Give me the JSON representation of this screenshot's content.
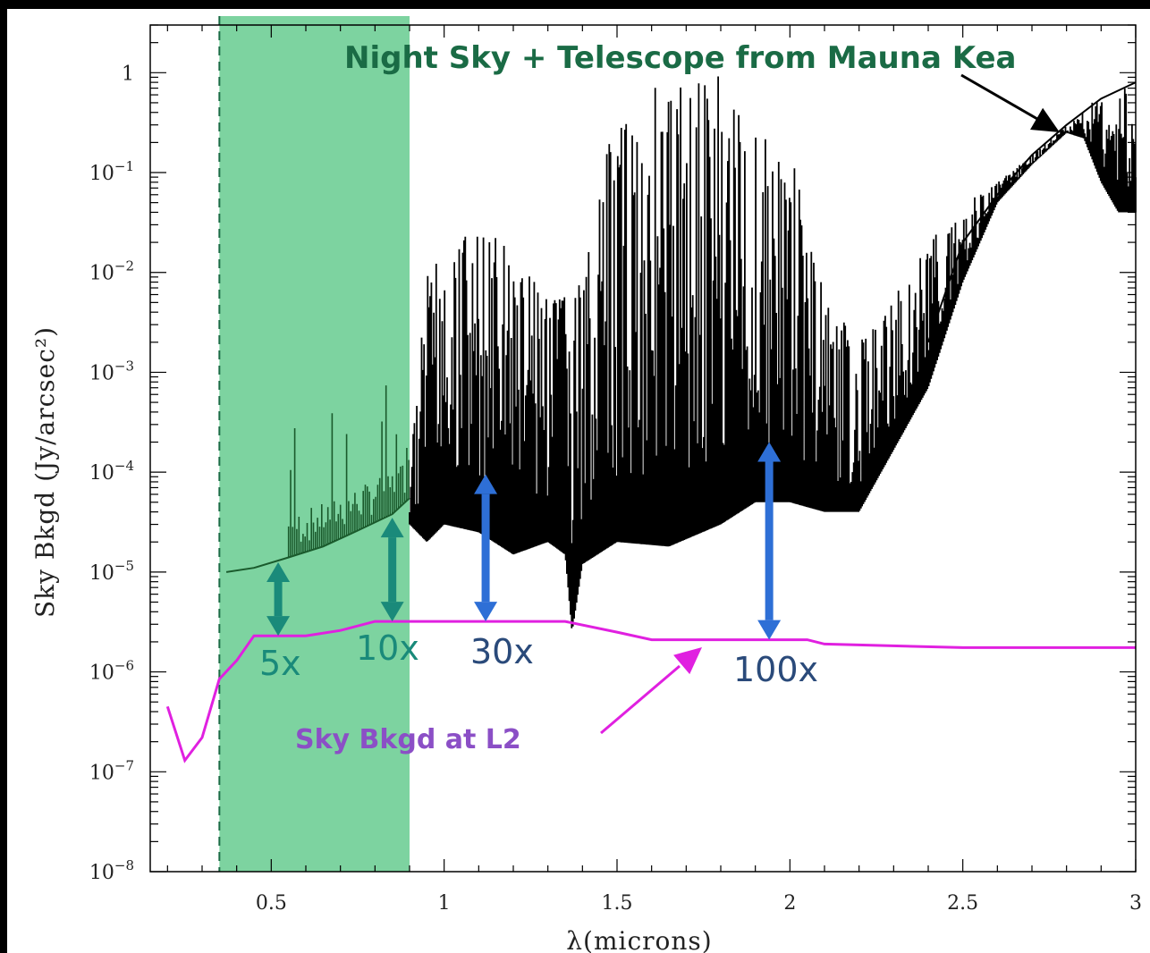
{
  "chart_data": {
    "type": "line",
    "title": "",
    "xlabel": "λ(microns)",
    "ylabel": "Sky Bkgd (Jy/arcsec²)",
    "xlim": [
      0.15,
      3.0
    ],
    "ylim": [
      1e-08,
      3
    ],
    "yscale": "log",
    "grid": false,
    "x_ticks": [
      {
        "value": 0.5,
        "label": "0.5"
      },
      {
        "value": 1.0,
        "label": "1"
      },
      {
        "value": 1.5,
        "label": "1.5"
      },
      {
        "value": 2.0,
        "label": "2"
      },
      {
        "value": 2.5,
        "label": "2.5"
      },
      {
        "value": 3.0,
        "label": "3"
      }
    ],
    "y_ticks": [
      {
        "value": 1,
        "base": "1",
        "exp": ""
      },
      {
        "value": 0.1,
        "base": "10",
        "exp": "−1"
      },
      {
        "value": 0.01,
        "base": "10",
        "exp": "−2"
      },
      {
        "value": 0.001,
        "base": "10",
        "exp": "−3"
      },
      {
        "value": 0.0001,
        "base": "10",
        "exp": "−4"
      },
      {
        "value": 1e-05,
        "base": "10",
        "exp": "−5"
      },
      {
        "value": 1e-06,
        "base": "10",
        "exp": "−6"
      },
      {
        "value": 1e-07,
        "base": "10",
        "exp": "−7"
      },
      {
        "value": 1e-08,
        "base": "10",
        "exp": "−8"
      }
    ],
    "highlight_band": {
      "x_start": 0.35,
      "x_end": 0.9,
      "color": "#7dd3a0"
    },
    "dashed_line_x": 0.35,
    "series": [
      {
        "name": "Night Sky + Telescope from Mauna Kea",
        "color": "#000000",
        "continuum": [
          [
            0.37,
            1e-05
          ],
          [
            0.45,
            1.1e-05
          ],
          [
            0.55,
            1.4e-05
          ],
          [
            0.65,
            1.8e-05
          ],
          [
            0.75,
            2.6e-05
          ],
          [
            0.85,
            3.8e-05
          ],
          [
            0.9,
            5.5e-05
          ],
          [
            1.0,
            7e-05
          ],
          [
            1.35,
            7e-05
          ],
          [
            1.6,
            5e-05
          ],
          [
            1.9,
            6e-05
          ],
          [
            2.05,
            7e-05
          ],
          [
            2.1,
            4.5e-05
          ],
          [
            2.2,
            4e-05
          ],
          [
            2.3,
            0.00015
          ],
          [
            2.4,
            0.002
          ],
          [
            2.5,
            0.02
          ],
          [
            2.6,
            0.06
          ],
          [
            2.7,
            0.15
          ],
          [
            2.8,
            0.3
          ],
          [
            2.9,
            0.55
          ],
          [
            3.0,
            0.8
          ]
        ],
        "band_top": [
          [
            0.9,
            0.00012
          ],
          [
            0.95,
            0.01
          ],
          [
            1.05,
            0.03
          ],
          [
            1.15,
            0.03
          ],
          [
            1.3,
            0.01
          ],
          [
            1.4,
            0.01
          ],
          [
            1.5,
            0.5
          ],
          [
            1.6,
            1
          ],
          [
            1.7,
            1
          ],
          [
            1.8,
            1
          ],
          [
            1.9,
            0.3
          ],
          [
            2.0,
            0.2
          ],
          [
            2.1,
            0.006
          ],
          [
            2.2,
            0.002
          ],
          [
            2.3,
            0.006
          ],
          [
            2.4,
            0.02
          ],
          [
            2.5,
            0.05
          ],
          [
            2.6,
            0.08
          ],
          [
            2.7,
            0.15
          ],
          [
            2.8,
            0.3
          ],
          [
            2.9,
            0.6
          ],
          [
            3.0,
            0.8
          ]
        ],
        "band_bottom": [
          [
            0.9,
            3e-05
          ],
          [
            0.95,
            2e-05
          ],
          [
            1.0,
            3e-05
          ],
          [
            1.1,
            2.5e-05
          ],
          [
            1.2,
            1.5e-05
          ],
          [
            1.3,
            2e-05
          ],
          [
            1.35,
            1.5e-05
          ],
          [
            1.37,
            2.5e-06
          ],
          [
            1.4,
            1.2e-05
          ],
          [
            1.5,
            2e-05
          ],
          [
            1.65,
            1.8e-05
          ],
          [
            1.8,
            3e-05
          ],
          [
            1.9,
            5e-05
          ],
          [
            2.0,
            5e-05
          ],
          [
            2.1,
            4e-05
          ],
          [
            2.2,
            4e-05
          ],
          [
            2.4,
            0.0007
          ],
          [
            2.5,
            0.008
          ],
          [
            2.6,
            0.05
          ],
          [
            2.7,
            0.12
          ],
          [
            2.8,
            0.25
          ],
          [
            2.85,
            0.22
          ],
          [
            2.9,
            0.08
          ],
          [
            2.95,
            0.04
          ],
          [
            3.0,
            0.04
          ]
        ]
      },
      {
        "name": "Sky Bkgd at L2",
        "color": "#e020e0",
        "points": [
          [
            0.2,
            4.5e-07
          ],
          [
            0.25,
            1.3e-07
          ],
          [
            0.3,
            2.2e-07
          ],
          [
            0.35,
            8.5e-07
          ],
          [
            0.4,
            1.3e-06
          ],
          [
            0.45,
            2.3e-06
          ],
          [
            0.6,
            2.3e-06
          ],
          [
            0.7,
            2.6e-06
          ],
          [
            0.8,
            3.2e-06
          ],
          [
            1.0,
            3.2e-06
          ],
          [
            1.35,
            3.2e-06
          ],
          [
            1.5,
            2.5e-06
          ],
          [
            1.6,
            2.1e-06
          ],
          [
            2.05,
            2.1e-06
          ],
          [
            2.1,
            1.9e-06
          ],
          [
            2.5,
            1.75e-06
          ],
          [
            3.0,
            1.75e-06
          ]
        ]
      }
    ],
    "ratio_arrows": [
      {
        "x": 0.52,
        "y_low": 2.3e-06,
        "y_high": 1.25e-05,
        "label": "5x",
        "color": "#1a8a7a"
      },
      {
        "x": 0.85,
        "y_low": 3.2e-06,
        "y_high": 3.5e-05,
        "label": "10x",
        "color": "#1a8a7a"
      },
      {
        "x": 1.12,
        "y_low": 3.2e-06,
        "y_high": 9.5e-05,
        "label": "30x",
        "color": "#2e6fd6"
      },
      {
        "x": 1.94,
        "y_low": 2.1e-06,
        "y_high": 0.0002,
        "label": "100x",
        "color": "#2e6fd6"
      }
    ],
    "annotations": [
      {
        "text": "Night Sky + Telescope from Mauna Kea",
        "color": "#1a6b45"
      },
      {
        "text": "Sky Bkgd at L2",
        "color": "#8b4fc6"
      }
    ]
  }
}
